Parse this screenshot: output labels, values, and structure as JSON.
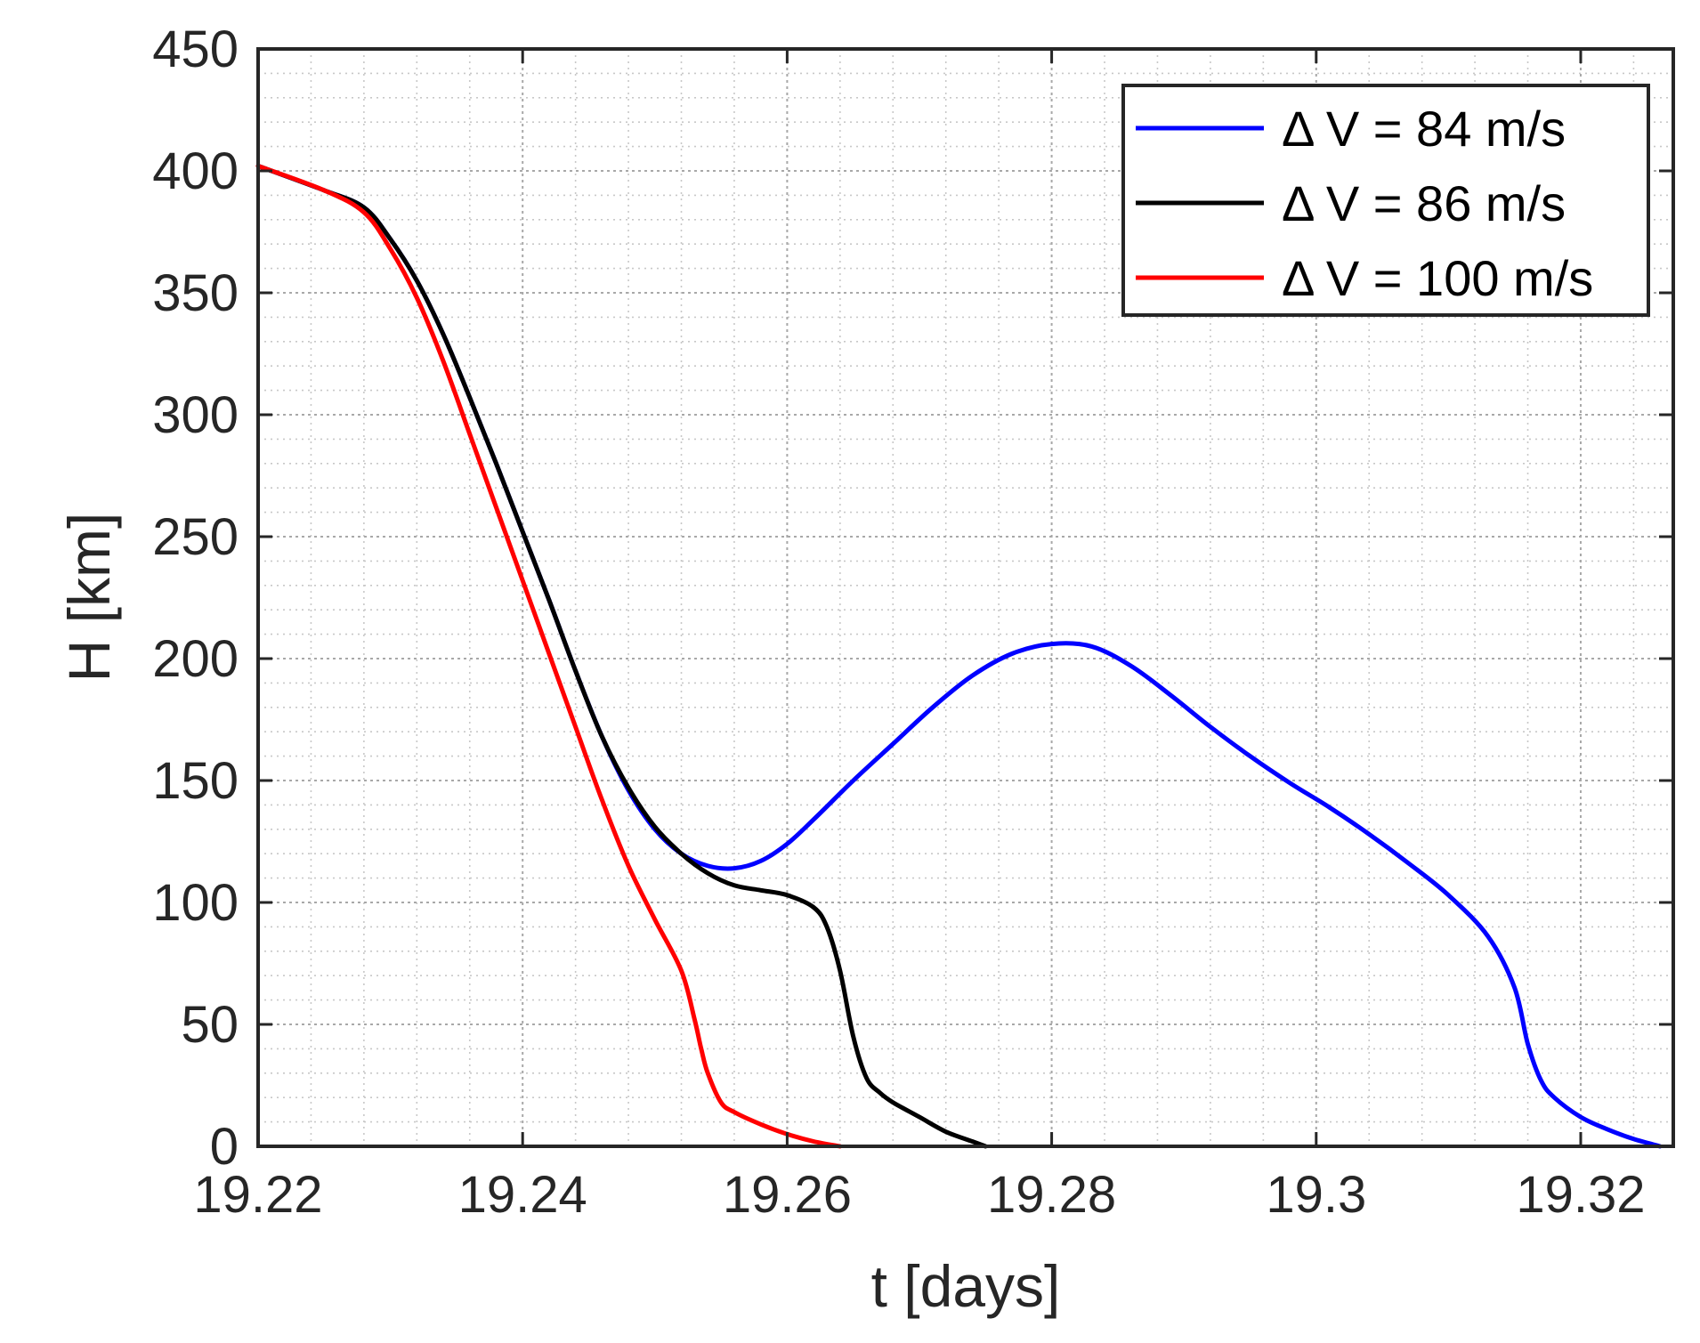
{
  "chart_data": {
    "type": "line",
    "title": "",
    "xlabel": "t [days]",
    "ylabel": "H [km]",
    "xlim": [
      19.22,
      19.327
    ],
    "ylim": [
      0,
      450
    ],
    "x_ticks": [
      19.22,
      19.24,
      19.26,
      19.28,
      19.3,
      19.32
    ],
    "x_tick_labels": [
      "19.22",
      "19.24",
      "19.26",
      "19.28",
      "19.3",
      "19.32"
    ],
    "y_ticks": [
      0,
      50,
      100,
      150,
      200,
      250,
      300,
      350,
      400,
      450
    ],
    "y_tick_labels": [
      "0",
      "50",
      "100",
      "150",
      "200",
      "250",
      "300",
      "350",
      "400",
      "450"
    ],
    "grid": "major and minor, dotted",
    "legend_position": "top-right",
    "series": [
      {
        "name": "Δ V = 84 m/s",
        "color": "#0000ff",
        "x": [
          19.22,
          19.225,
          19.228,
          19.23,
          19.232,
          19.234,
          19.236,
          19.238,
          19.24,
          19.242,
          19.244,
          19.246,
          19.248,
          19.25,
          19.252,
          19.254,
          19.256,
          19.258,
          19.26,
          19.262,
          19.265,
          19.268,
          19.271,
          19.274,
          19.277,
          19.28,
          19.283,
          19.286,
          19.289,
          19.292,
          19.295,
          19.298,
          19.301,
          19.304,
          19.307,
          19.31,
          19.313,
          19.315,
          19.316,
          19.317,
          19.318,
          19.32,
          19.322,
          19.324,
          19.326
        ],
        "y": [
          402,
          392,
          385,
          372,
          355,
          333,
          307,
          280,
          252,
          224,
          195,
          168,
          146,
          130,
          120,
          115,
          114,
          117,
          124,
          134,
          150,
          165,
          180,
          193,
          202,
          206,
          205,
          197,
          185,
          172,
          160,
          149,
          139,
          128,
          116,
          103,
          86,
          65,
          42,
          27,
          20,
          12,
          7,
          3,
          0
        ]
      },
      {
        "name": "Δ V = 86 m/s",
        "color": "#000000",
        "x": [
          19.22,
          19.225,
          19.228,
          19.23,
          19.232,
          19.234,
          19.236,
          19.238,
          19.24,
          19.242,
          19.244,
          19.246,
          19.248,
          19.25,
          19.252,
          19.254,
          19.256,
          19.258,
          19.26,
          19.262,
          19.263,
          19.264,
          19.265,
          19.266,
          19.267,
          19.268,
          19.27,
          19.272,
          19.274,
          19.275
        ],
        "y": [
          402,
          392,
          385,
          372,
          355,
          333,
          307,
          280,
          252,
          224,
          195,
          168,
          147,
          131,
          120,
          112,
          107,
          105,
          103,
          98,
          90,
          72,
          45,
          28,
          22,
          18,
          12,
          6,
          2,
          0
        ]
      },
      {
        "name": "Δ V = 100 m/s",
        "color": "#ff0000",
        "x": [
          19.22,
          19.225,
          19.228,
          19.23,
          19.232,
          19.234,
          19.236,
          19.238,
          19.24,
          19.242,
          19.244,
          19.246,
          19.248,
          19.25,
          19.252,
          19.253,
          19.2535,
          19.254,
          19.255,
          19.256,
          19.258,
          19.26,
          19.262,
          19.264
        ],
        "y": [
          402,
          392,
          383,
          368,
          348,
          322,
          292,
          262,
          232,
          202,
          172,
          142,
          115,
          93,
          72,
          52,
          40,
          30,
          18,
          14,
          9,
          5,
          2,
          0
        ]
      }
    ]
  }
}
